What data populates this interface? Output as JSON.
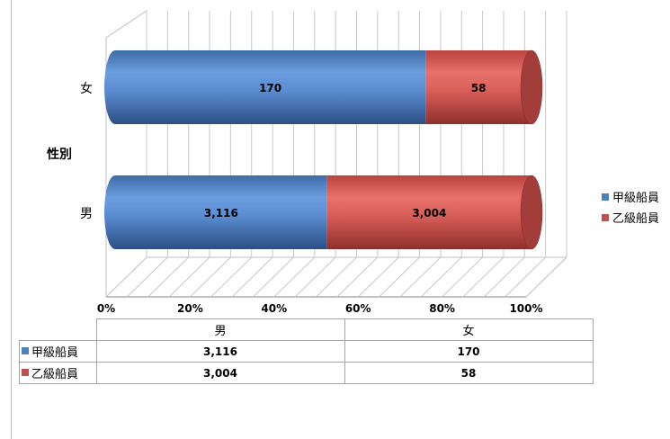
{
  "colors": {
    "series1": "#4f81bd",
    "series2": "#c0504d"
  },
  "chart_data": {
    "type": "bar",
    "orientation": "horizontal",
    "stacked": "percent",
    "style": "3d-cylinder",
    "categories": [
      "女",
      "男"
    ],
    "series": [
      {
        "name": "甲級船員",
        "values": [
          170,
          3116
        ]
      },
      {
        "name": "乙級船員",
        "values": [
          58,
          3004
        ]
      }
    ],
    "xlim": [
      0,
      100
    ],
    "x_ticks": [
      "0%",
      "20%",
      "40%",
      "60%",
      "80%",
      "100%"
    ],
    "ylabel": "性別",
    "grid": true,
    "legend": "right",
    "data_table": {
      "columns": [
        "男",
        "女"
      ],
      "rows": [
        {
          "name": "甲級船員",
          "values": [
            "3,116",
            "170"
          ]
        },
        {
          "name": "乙級船員",
          "values": [
            "3,004",
            "58"
          ]
        }
      ]
    }
  }
}
